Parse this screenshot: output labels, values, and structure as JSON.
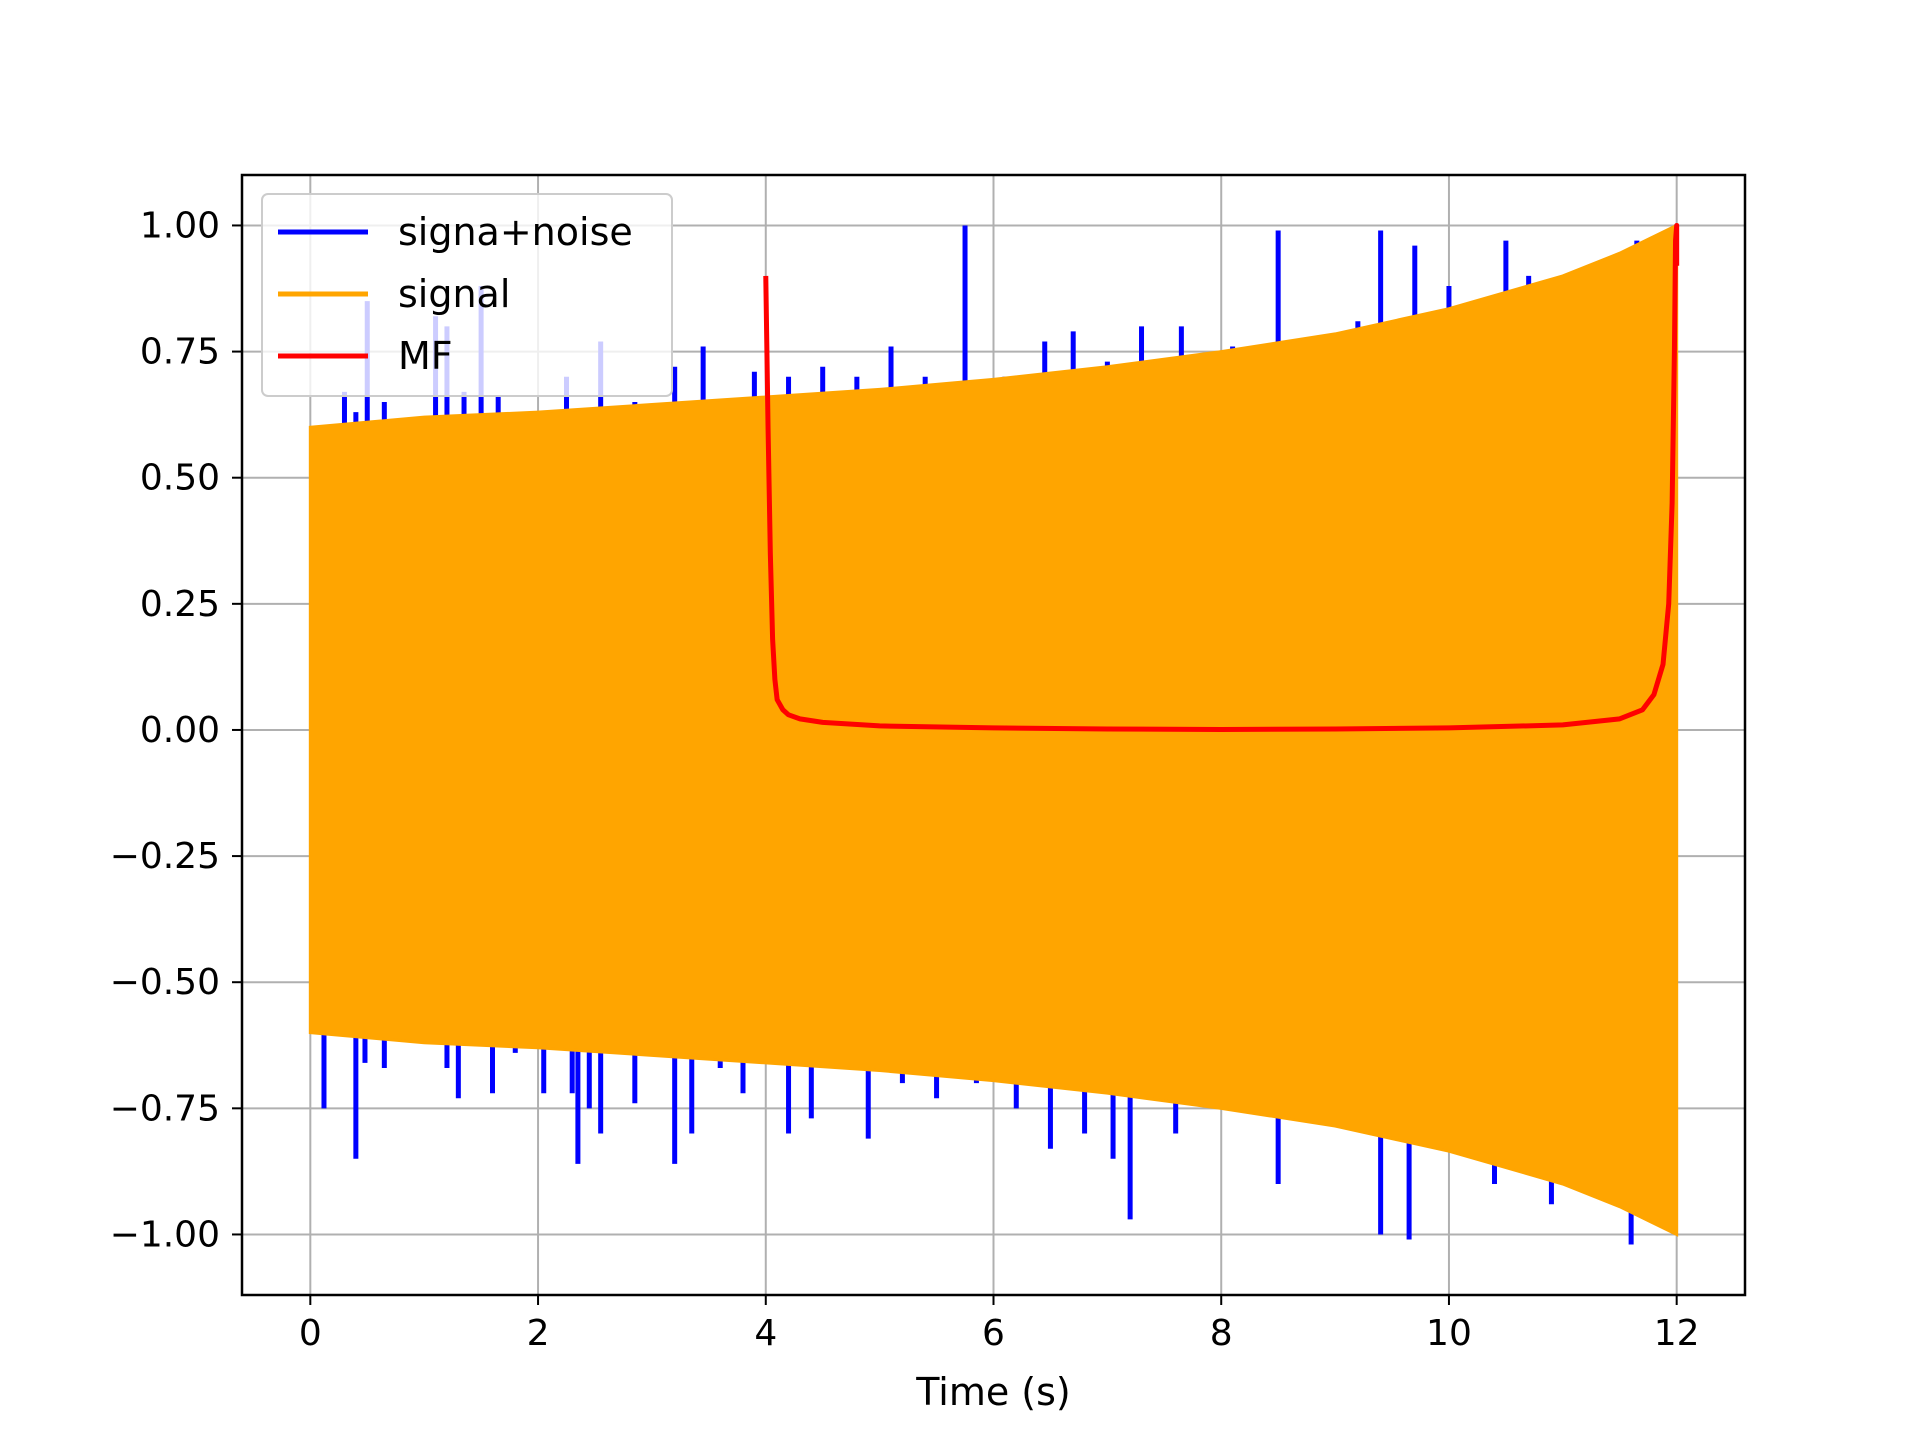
{
  "chart_data": {
    "type": "line",
    "title": "",
    "xlabel": "Time (s)",
    "ylabel": "",
    "xlim": [
      -0.6,
      12.6
    ],
    "ylim": [
      -1.12,
      1.1
    ],
    "xticks": [
      0,
      2,
      4,
      6,
      8,
      10,
      12
    ],
    "xtick_labels": [
      "0",
      "2",
      "4",
      "6",
      "8",
      "10",
      "12"
    ],
    "yticks": [
      1.0,
      0.75,
      0.5,
      0.25,
      0.0,
      -0.25,
      -0.5,
      -0.75,
      -1.0
    ],
    "ytick_labels": [
      "1.00",
      "0.75",
      "0.50",
      "0.25",
      "0.00",
      "−0.25",
      "−0.50",
      "−0.75",
      "−1.00"
    ],
    "grid": true,
    "legend_position": "upper-left",
    "series": [
      {
        "name": "signa+noise",
        "color": "#0000ff",
        "spikes_up": [
          [
            0.15,
            0.58
          ],
          [
            0.3,
            0.67
          ],
          [
            0.4,
            0.63
          ],
          [
            0.5,
            0.85
          ],
          [
            0.65,
            0.65
          ],
          [
            0.9,
            0.6
          ],
          [
            1.1,
            0.82
          ],
          [
            1.2,
            0.8
          ],
          [
            1.35,
            0.67
          ],
          [
            1.5,
            0.88
          ],
          [
            1.65,
            0.66
          ],
          [
            1.8,
            0.63
          ],
          [
            2.25,
            0.7
          ],
          [
            2.55,
            0.77
          ],
          [
            2.85,
            0.65
          ],
          [
            3.2,
            0.72
          ],
          [
            3.45,
            0.76
          ],
          [
            3.9,
            0.71
          ],
          [
            4.2,
            0.7
          ],
          [
            4.5,
            0.72
          ],
          [
            4.8,
            0.7
          ],
          [
            5.1,
            0.76
          ],
          [
            5.4,
            0.7
          ],
          [
            5.75,
            1.0
          ],
          [
            6.1,
            0.7
          ],
          [
            6.45,
            0.77
          ],
          [
            6.7,
            0.79
          ],
          [
            7.0,
            0.73
          ],
          [
            7.3,
            0.8
          ],
          [
            7.65,
            0.8
          ],
          [
            8.1,
            0.76
          ],
          [
            8.5,
            0.99
          ],
          [
            9.2,
            0.81
          ],
          [
            9.4,
            0.99
          ],
          [
            9.7,
            0.96
          ],
          [
            10.0,
            0.88
          ],
          [
            10.5,
            0.97
          ],
          [
            10.7,
            0.9
          ],
          [
            11.0,
            0.87
          ],
          [
            11.4,
            0.93
          ],
          [
            11.65,
            0.97
          ]
        ],
        "spikes_down": [
          [
            0.12,
            -0.75
          ],
          [
            0.4,
            -0.85
          ],
          [
            0.48,
            -0.66
          ],
          [
            0.65,
            -0.67
          ],
          [
            1.2,
            -0.67
          ],
          [
            1.3,
            -0.73
          ],
          [
            1.6,
            -0.72
          ],
          [
            1.8,
            -0.64
          ],
          [
            2.05,
            -0.72
          ],
          [
            2.3,
            -0.72
          ],
          [
            2.35,
            -0.86
          ],
          [
            2.45,
            -0.75
          ],
          [
            2.55,
            -0.8
          ],
          [
            2.85,
            -0.74
          ],
          [
            3.2,
            -0.86
          ],
          [
            3.35,
            -0.8
          ],
          [
            3.6,
            -0.67
          ],
          [
            3.8,
            -0.72
          ],
          [
            4.2,
            -0.8
          ],
          [
            4.4,
            -0.77
          ],
          [
            4.9,
            -0.81
          ],
          [
            5.2,
            -0.7
          ],
          [
            5.5,
            -0.73
          ],
          [
            5.85,
            -0.7
          ],
          [
            6.2,
            -0.75
          ],
          [
            6.5,
            -0.83
          ],
          [
            6.8,
            -0.8
          ],
          [
            7.05,
            -0.85
          ],
          [
            7.2,
            -0.97
          ],
          [
            7.6,
            -0.8
          ],
          [
            8.5,
            -0.9
          ],
          [
            9.4,
            -1.0
          ],
          [
            9.65,
            -1.01
          ],
          [
            10.4,
            -0.9
          ],
          [
            10.9,
            -0.94
          ],
          [
            11.6,
            -1.02
          ]
        ]
      },
      {
        "name": "signal",
        "color": "#ffa500",
        "x_start": 0.0,
        "x_end": 12.0,
        "envelope": [
          [
            0.0,
            0.6
          ],
          [
            1.0,
            0.62
          ],
          [
            2.0,
            0.63
          ],
          [
            3.0,
            0.645
          ],
          [
            4.0,
            0.66
          ],
          [
            5.0,
            0.675
          ],
          [
            6.0,
            0.695
          ],
          [
            7.0,
            0.72
          ],
          [
            8.0,
            0.75
          ],
          [
            9.0,
            0.785
          ],
          [
            10.0,
            0.835
          ],
          [
            11.0,
            0.9
          ],
          [
            11.5,
            0.945
          ],
          [
            12.0,
            1.0
          ]
        ]
      },
      {
        "name": "MF",
        "color": "#ff0000",
        "points": [
          [
            4.0,
            0.9
          ],
          [
            4.02,
            0.6
          ],
          [
            4.04,
            0.35
          ],
          [
            4.06,
            0.18
          ],
          [
            4.08,
            0.1
          ],
          [
            4.1,
            0.06
          ],
          [
            4.15,
            0.04
          ],
          [
            4.2,
            0.03
          ],
          [
            4.3,
            0.022
          ],
          [
            4.5,
            0.015
          ],
          [
            5.0,
            0.008
          ],
          [
            6.0,
            0.004
          ],
          [
            7.0,
            0.002
          ],
          [
            8.0,
            0.001
          ],
          [
            9.0,
            0.002
          ],
          [
            10.0,
            0.004
          ],
          [
            11.0,
            0.01
          ],
          [
            11.5,
            0.022
          ],
          [
            11.7,
            0.04
          ],
          [
            11.8,
            0.07
          ],
          [
            11.88,
            0.13
          ],
          [
            11.93,
            0.25
          ],
          [
            11.96,
            0.45
          ],
          [
            11.98,
            0.75
          ],
          [
            11.99,
            0.97
          ],
          [
            12.0,
            1.0
          ],
          [
            12.0,
            0.92
          ]
        ]
      }
    ]
  }
}
